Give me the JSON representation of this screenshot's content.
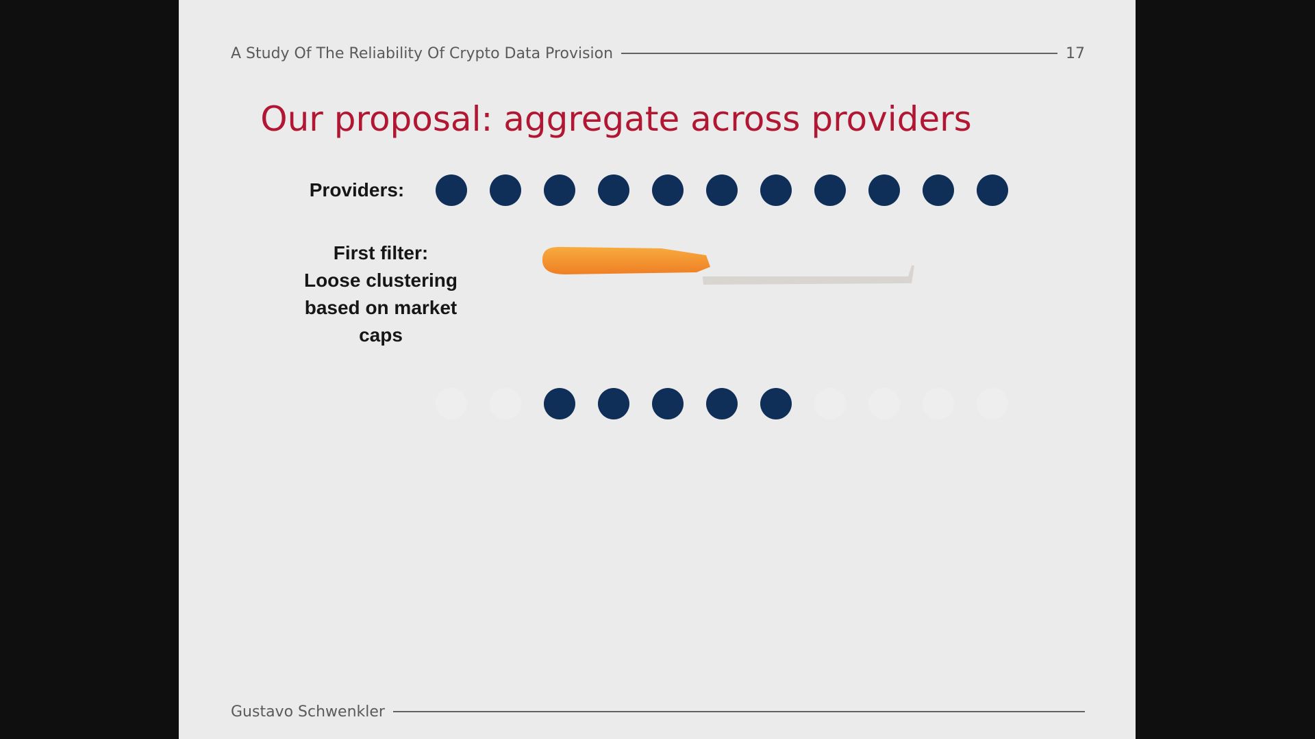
{
  "header": {
    "title": "A Study Of The Reliability Of Crypto Data Provision",
    "page_number": "17"
  },
  "slide": {
    "title": "Our proposal: aggregate across providers",
    "providers_label": "Providers:",
    "filter_label_lines": [
      "First filter:",
      "Loose clustering",
      "based on market",
      "caps"
    ],
    "top_dots_total": 11,
    "bottom_dots_visible": [
      2,
      3,
      4,
      5,
      6
    ]
  },
  "footer": {
    "author": "Gustavo Schwenkler"
  },
  "colors": {
    "background": "#0f0f0f",
    "slide_background": "#ebebeb",
    "title": "#b11733",
    "dots": "#0f2f58",
    "filter_orange": "#f39b2f",
    "filter_gray": "#d8d5d0"
  }
}
